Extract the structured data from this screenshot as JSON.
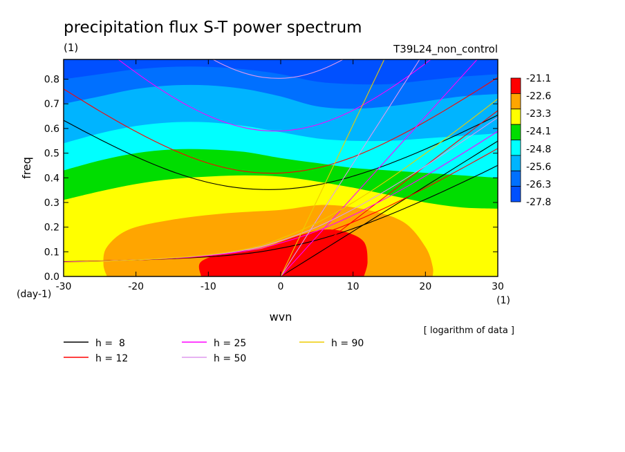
{
  "chart_data": {
    "type": "heatmap",
    "title": "precipitation flux S-T power spectrum",
    "subtitle_left": "(1)",
    "subtitle_right": "T39L24_non_control",
    "xlabel": "wvn",
    "ylabel": "freq",
    "x_unit": "(1)",
    "y_unit": "(day-1)",
    "xlim": [
      -30,
      30
    ],
    "ylim": [
      0.0,
      0.88
    ],
    "x_ticks": [
      -30,
      -20,
      -10,
      0,
      10,
      20,
      30
    ],
    "x_tick_labels": [
      "-30",
      "-20",
      "-10",
      "0",
      "10",
      "20",
      "30"
    ],
    "y_ticks": [
      0.0,
      0.1,
      0.2,
      0.3,
      0.4,
      0.5,
      0.6,
      0.7,
      0.8
    ],
    "y_tick_labels": [
      "0.0",
      "0.1",
      "0.2",
      "0.3",
      "0.4",
      "0.5",
      "0.6",
      "0.7",
      "0.8"
    ],
    "note": "[ logarithm of data ]",
    "colorbar": {
      "labels": [
        "-21.1",
        "-22.6",
        "-23.3",
        "-24.1",
        "-24.8",
        "-25.6",
        "-26.3",
        "-27.8"
      ],
      "colors": [
        "#ff0000",
        "#ffa500",
        "#ffff00",
        "#00dd00",
        "#00ffff",
        "#00b4ff",
        "#0070ff",
        "#0050ff"
      ]
    },
    "fill_regions": [
      {
        "level": "-22.6",
        "color": "#ffa500",
        "outline": [
          [
            -24,
            0
          ],
          [
            -24.5,
            0.05
          ],
          [
            -24,
            0.12
          ],
          [
            -21,
            0.19
          ],
          [
            -15,
            0.23
          ],
          [
            -8,
            0.255
          ],
          [
            0,
            0.27
          ],
          [
            6,
            0.29
          ],
          [
            12,
            0.27
          ],
          [
            17,
            0.22
          ],
          [
            20,
            0.12
          ],
          [
            21,
            0.04
          ],
          [
            21,
            0
          ]
        ]
      },
      {
        "level": "-21.1",
        "color": "#ff0000",
        "outline": [
          [
            -11,
            0
          ],
          [
            -11,
            0.06
          ],
          [
            -7,
            0.1
          ],
          [
            -3,
            0.11
          ],
          [
            0,
            0.14
          ],
          [
            3,
            0.17
          ],
          [
            6,
            0.19
          ],
          [
            9,
            0.18
          ],
          [
            11.5,
            0.14
          ],
          [
            12,
            0.06
          ],
          [
            11.5,
            0
          ]
        ]
      }
    ],
    "band_boundaries": [
      {
        "between": [
          "-23.3",
          "-24.1"
        ],
        "color": "#ffff00",
        "y": [
          0.31,
          0.345,
          0.375,
          0.395,
          0.405,
          0.41,
          0.405,
          0.385,
          0.36,
          0.33,
          0.3,
          0.28,
          0.275
        ]
      },
      {
        "between": [
          "-24.1",
          "-24.8"
        ],
        "color": "#00dd00",
        "y": [
          0.43,
          0.47,
          0.5,
          0.515,
          0.515,
          0.505,
          0.48,
          0.46,
          0.44,
          0.43,
          0.42,
          0.41,
          0.4
        ]
      },
      {
        "between": [
          "-24.8",
          "-25.6"
        ],
        "color": "#00ffff",
        "y": [
          0.54,
          0.58,
          0.61,
          0.625,
          0.625,
          0.61,
          0.585,
          0.56,
          0.55,
          0.55,
          0.56,
          0.57,
          0.58
        ]
      },
      {
        "between": [
          "-25.6",
          "-26.3"
        ],
        "color": "#00b4ff",
        "y": [
          0.7,
          0.73,
          0.76,
          0.775,
          0.775,
          0.76,
          0.73,
          0.69,
          0.68,
          0.69,
          0.71,
          0.73,
          0.74
        ]
      },
      {
        "between": [
          "-26.3",
          "-27.8"
        ],
        "color": "#0070ff",
        "y": [
          0.8,
          0.82,
          0.84,
          0.85,
          0.85,
          0.84,
          0.82,
          0.79,
          0.78,
          0.78,
          0.795,
          0.81,
          0.82
        ]
      }
    ],
    "band_boundary_x": [
      -30,
      -25,
      -20,
      -15,
      -10,
      -5,
      0,
      5,
      10,
      15,
      20,
      25,
      30
    ],
    "dispersion_curves": {
      "wavenumbers": [
        -30,
        -27.5,
        -25,
        -22.5,
        -20,
        -17.5,
        -15,
        -12.5,
        -10,
        -7.5,
        -5,
        -2.5,
        0,
        2.5,
        5,
        7.5,
        10,
        12.5,
        15,
        17.5,
        20,
        22.5,
        25,
        27.5,
        30
      ],
      "series": [
        {
          "name": "h =  8",
          "color": "#000000",
          "er": [
            0.6331,
            0.594,
            0.556,
            0.5197,
            0.4855,
            0.4539,
            0.4255,
            0.4011,
            0.3812,
            0.3664,
            0.3568,
            0.3525,
            0.3535,
            0.3597,
            0.3709,
            0.3867,
            0.4066,
            0.4301,
            0.4565,
            0.4855,
            0.5166,
            0.5492,
            0.5833,
            0.6183,
            0.6543
          ],
          "mrg": [
            0.06,
            0.0614,
            0.063,
            0.0647,
            0.0668,
            0.0692,
            0.072,
            0.0755,
            0.0797,
            0.085,
            0.092,
            0.1014,
            0.1147,
            0.1296,
            0.1478,
            0.1694,
            0.1938,
            0.2208,
            0.2497,
            0.2804,
            0.3124,
            0.3456,
            0.3797,
            0.4146,
            0.4503
          ],
          "kelvin": [
            0,
            0.0458,
            0.0915,
            0.1373,
            0.183,
            0.2288,
            0.2746,
            0.3203,
            0.3661,
            0.4118,
            0.4576,
            0.5034,
            0.5491,
            0.5949,
            0.6406
          ]
        },
        {
          "name": "h = 12",
          "color": "#ff0000",
          "er": [
            0.7604,
            0.7149,
            0.6705,
            0.6278,
            0.5873,
            0.5495,
            0.515,
            0.4847,
            0.4593,
            0.4396,
            0.4262,
            0.4195,
            0.4195,
            0.4262,
            0.4396,
            0.4593,
            0.4847,
            0.515,
            0.5495,
            0.5873,
            0.6278,
            0.6705,
            0.7149,
            0.7604,
            0.8068
          ],
          "mrg": [
            0.0592,
            0.0608,
            0.0626,
            0.0646,
            0.067,
            0.0698,
            0.0732,
            0.0773,
            0.0823,
            0.0888,
            0.0972,
            0.1087,
            0.1252,
            0.1436,
            0.1657,
            0.1914,
            0.2204,
            0.2521,
            0.286,
            0.3218,
            0.3591,
            0.3977,
            0.4374,
            0.4779,
            0.5191
          ],
          "kelvin": [
            0,
            0.0561,
            0.1121,
            0.1682,
            0.2242,
            0.2803,
            0.3363,
            0.3924,
            0.4484,
            0.5045,
            0.5605,
            0.6166,
            0.6726,
            0.7287,
            0.7847
          ]
        },
        {
          "name": "h = 25",
          "color": "#ff00ff",
          "er": [
            1.057,
            0.9967,
            0.9378,
            0.881,
            0.8269,
            0.776,
            0.7292,
            0.6875,
            0.6518,
            0.6234,
            0.6031,
            0.5918,
            0.59,
            0.5978,
            0.6149,
            0.6406,
            0.6741,
            0.7143,
            0.7599,
            0.8099,
            0.8635,
            0.9199,
            0.9784,
            1.0386,
            1.1001
          ],
          "mrg": [
            0.0582,
            0.06,
            0.062,
            0.0643,
            0.067,
            0.0702,
            0.0741,
            0.0788,
            0.0848,
            0.0923,
            0.1023,
            0.116,
            0.1358,
            0.1581,
            0.1844,
            0.2148,
            0.2486,
            0.2853,
            0.3243,
            0.3652,
            0.4077,
            0.4515,
            0.4964,
            0.5421,
            0.5885
          ],
          "kelvin": [
            0,
            0.081,
            0.162,
            0.243,
            0.324,
            0.405,
            0.486,
            0.5671,
            0.6481,
            0.7291,
            0.8101,
            0.8911,
            0.9721,
            1.0531,
            1.1341
          ]
        },
        {
          "name": "h = 50",
          "color": "#dd99ee",
          "er": [
            1.4149,
            1.3374,
            1.2618,
            1.1888,
            1.119,
            1.0532,
            0.9924,
            0.9378,
            0.8906,
            0.8524,
            0.8244,
            0.8078,
            0.8035,
            0.8117,
            0.832,
            0.8631,
            0.9036,
            0.9521,
            1.0071,
            1.0674,
            1.1318,
            1.1995,
            1.2698,
            1.342,
            1.4157
          ],
          "mrg": [
            0.0575,
            0.0594,
            0.0616,
            0.0641,
            0.0671,
            0.0706,
            0.0749,
            0.0802,
            0.0868,
            0.0953,
            0.1067,
            0.1224,
            0.1451,
            0.1708,
            0.2005,
            0.2347,
            0.2725,
            0.3132,
            0.3563,
            0.4013,
            0.4479,
            0.4958,
            0.5447,
            0.5945,
            0.645
          ],
          "kelvin": [
            0,
            0.1146,
            0.2291,
            0.3437,
            0.4582,
            0.5728,
            0.6873,
            0.8019,
            0.9164,
            1.031,
            1.1456,
            1.2601,
            1.3747,
            1.4892,
            1.6038
          ]
        },
        {
          "name": "h = 90",
          "color": "#eecc00",
          "er": [
            1.8269,
            1.7301,
            1.6357,
            1.5444,
            1.4567,
            1.374,
            1.2972,
            1.2279,
            1.1676,
            1.1182,
            1.0815,
            1.0591,
            1.052,
            1.0606,
            1.0842,
            1.1212,
            1.1702,
            1.2292,
            1.2963,
            1.3702,
            1.4492,
            1.5325,
            1.6189,
            1.7079,
            1.7989
          ],
          "mrg": [
            0.0569,
            0.0589,
            0.0612,
            0.0638,
            0.067,
            0.0708,
            0.0754,
            0.0811,
            0.0882,
            0.0975,
            0.11,
            0.1276,
            0.1536,
            0.1832,
            0.2176,
            0.2569,
            0.3001,
            0.3465,
            0.3954,
            0.4463,
            0.4988,
            0.5527,
            0.6076,
            0.6634,
            0.7199
          ],
          "kelvin": [
            0,
            0.1537,
            0.3074,
            0.4611,
            0.6148,
            0.7685,
            0.9222,
            1.0759,
            1.2296,
            1.3833,
            1.537,
            1.6907,
            1.8444,
            1.9981,
            2.1518
          ]
        }
      ]
    }
  }
}
